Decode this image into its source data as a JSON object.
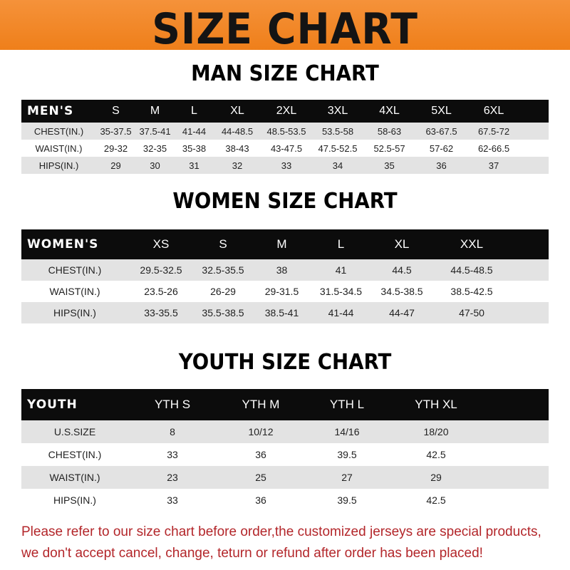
{
  "banner": {
    "title": "SIZE CHART",
    "color": "#ef7f1a"
  },
  "men": {
    "title": "MAN SIZE CHART",
    "header": [
      "MEN'S",
      "S",
      "M",
      "L",
      "XL",
      "2XL",
      "3XL",
      "4XL",
      "5XL",
      "6XL"
    ],
    "rows": [
      [
        "CHEST(IN.)",
        "35-37.5",
        "37.5-41",
        "41-44",
        "44-48.5",
        "48.5-53.5",
        "53.5-58",
        "58-63",
        "63-67.5",
        "67.5-72"
      ],
      [
        "WAIST(IN.)",
        "29-32",
        "32-35",
        "35-38",
        "38-43",
        "43-47.5",
        "47.5-52.5",
        "52.5-57",
        "57-62",
        "62-66.5"
      ],
      [
        "HIPS(IN.)",
        "29",
        "30",
        "31",
        "32",
        "33",
        "34",
        "35",
        "36",
        "37"
      ]
    ]
  },
  "women": {
    "title": "WOMEN SIZE CHART",
    "header": [
      "WOMEN'S",
      "XS",
      "S",
      "M",
      "L",
      "XL",
      "XXL"
    ],
    "rows": [
      [
        "CHEST(IN.)",
        "29.5-32.5",
        "32.5-35.5",
        "38",
        "41",
        "44.5",
        "44.5-48.5"
      ],
      [
        "WAIST(IN.)",
        "23.5-26",
        "26-29",
        "29-31.5",
        "31.5-34.5",
        "34.5-38.5",
        "38.5-42.5"
      ],
      [
        "HIPS(IN.)",
        "33-35.5",
        "35.5-38.5",
        "38.5-41",
        "41-44",
        "44-47",
        "47-50"
      ]
    ]
  },
  "youth": {
    "title": "YOUTH SIZE CHART",
    "header": [
      "YOUTH",
      "YTH S",
      "YTH M",
      "YTH L",
      "YTH XL"
    ],
    "rows": [
      [
        "U.S.SIZE",
        "8",
        "10/12",
        "14/16",
        "18/20"
      ],
      [
        "CHEST(IN.)",
        "33",
        "36",
        "39.5",
        "42.5"
      ],
      [
        "WAIST(IN.)",
        "23",
        "25",
        "27",
        "29"
      ],
      [
        "HIPS(IN.)",
        "33",
        "36",
        "39.5",
        "42.5"
      ]
    ]
  },
  "footer": {
    "line1": "Please refer to our size chart before order,the customized jerseys are special products,",
    "line2": "we don't accept cancel, change, teturn or refund after order has been placed!",
    "color": "#b3262a"
  }
}
